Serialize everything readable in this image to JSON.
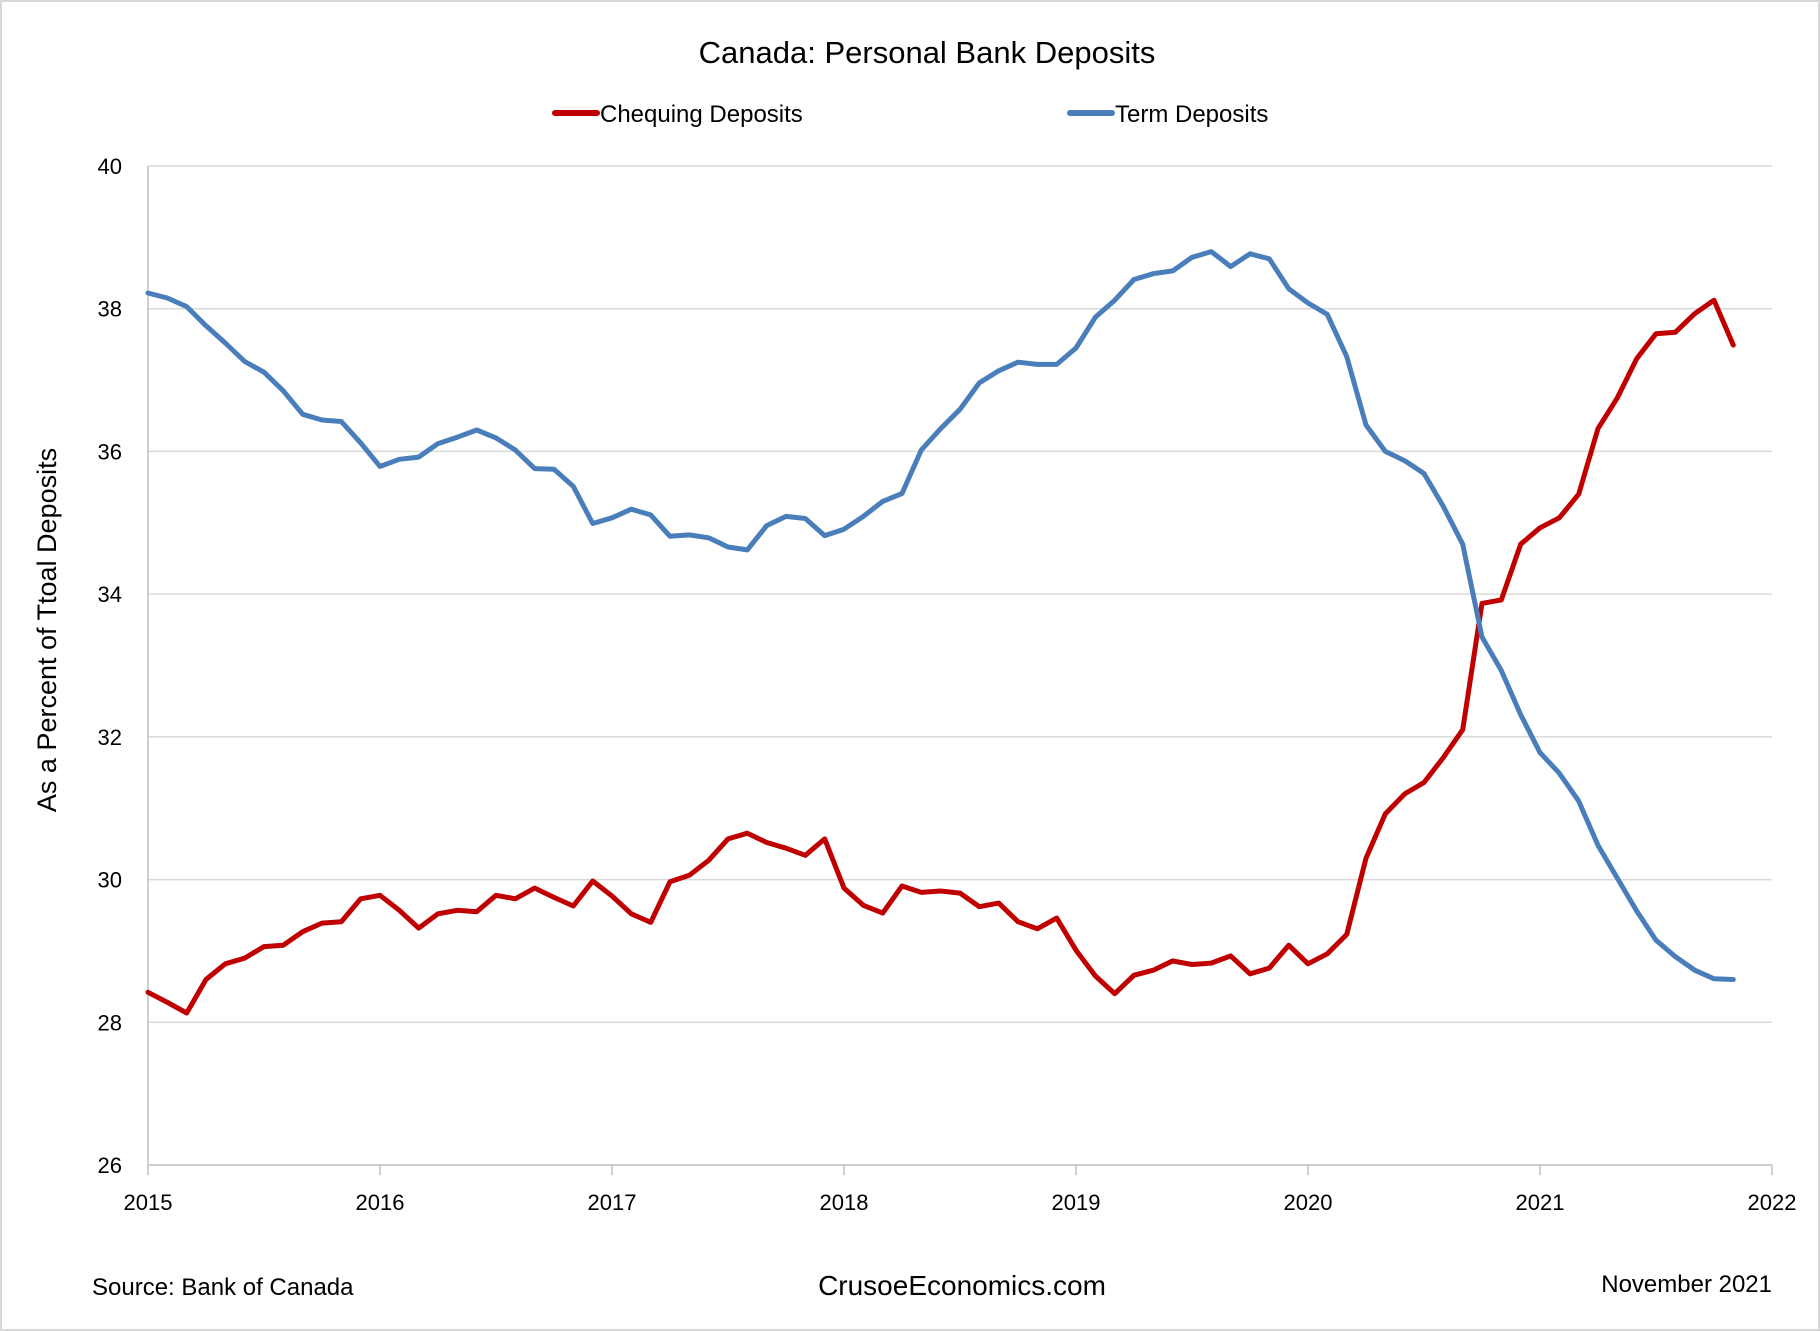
{
  "colors": {
    "chequing": "#c00000",
    "term": "#4a7ebb",
    "grid": "#d9d9d9",
    "axis": "#bfbfbf"
  },
  "footer": {
    "source": "Source:  Bank of Canada",
    "site": "CrusoeEconomics.com",
    "date": "November 2021"
  },
  "chart_data": {
    "type": "line",
    "title": "Canada: Personal Bank Deposits",
    "ylabel": "As a Percent of Ttoal Deposits",
    "xlabel": "",
    "ylim": [
      26,
      40
    ],
    "xlim": [
      2015,
      2022
    ],
    "y_ticks": [
      "26",
      "28",
      "30",
      "32",
      "34",
      "36",
      "38",
      "40"
    ],
    "x_ticks": [
      "2015",
      "2016",
      "2017",
      "2018",
      "2019",
      "2020",
      "2021",
      "2022"
    ],
    "grid": "horizontal",
    "legend": "top",
    "series": [
      {
        "name": "Chequing Deposits",
        "color": "#c00000",
        "x": [
          2015.0,
          2015.083,
          2015.167,
          2015.25,
          2015.333,
          2015.417,
          2015.5,
          2015.583,
          2015.667,
          2015.75,
          2015.833,
          2015.917,
          2016.0,
          2016.083,
          2016.167,
          2016.25,
          2016.333,
          2016.417,
          2016.5,
          2016.583,
          2016.667,
          2016.75,
          2016.833,
          2016.917,
          2017.0,
          2017.083,
          2017.167,
          2017.25,
          2017.333,
          2017.417,
          2017.5,
          2017.583,
          2017.667,
          2017.75,
          2017.833,
          2017.917,
          2018.0,
          2018.083,
          2018.167,
          2018.25,
          2018.333,
          2018.417,
          2018.5,
          2018.583,
          2018.667,
          2018.75,
          2018.833,
          2018.917,
          2019.0,
          2019.083,
          2019.167,
          2019.25,
          2019.333,
          2019.417,
          2019.5,
          2019.583,
          2019.667,
          2019.75,
          2019.833,
          2019.917,
          2020.0,
          2020.083,
          2020.167,
          2020.25,
          2020.333,
          2020.417,
          2020.5,
          2020.583,
          2020.667,
          2020.75,
          2020.833,
          2020.917,
          2021.0,
          2021.083,
          2021.167,
          2021.25,
          2021.333,
          2021.417,
          2021.5,
          2021.583,
          2021.667,
          2021.75,
          2021.833
        ],
        "values": [
          28.42,
          28.28,
          28.13,
          28.6,
          28.82,
          28.9,
          29.06,
          29.08,
          29.27,
          29.39,
          29.41,
          29.73,
          29.78,
          29.57,
          29.32,
          29.52,
          29.57,
          29.55,
          29.78,
          29.73,
          29.88,
          29.75,
          29.63,
          29.98,
          29.77,
          29.52,
          29.4,
          29.97,
          30.06,
          30.27,
          30.57,
          30.65,
          30.52,
          30.44,
          30.34,
          30.57,
          29.88,
          29.64,
          29.53,
          29.91,
          29.82,
          29.84,
          29.81,
          29.62,
          29.67,
          29.41,
          29.31,
          29.46,
          29.01,
          28.65,
          28.4,
          28.66,
          28.73,
          28.86,
          28.81,
          28.83,
          28.93,
          28.68,
          28.76,
          29.08,
          28.82,
          28.96,
          29.23,
          30.3,
          30.92,
          31.2,
          31.36,
          31.71,
          32.1,
          33.87,
          33.92,
          34.7,
          34.93,
          35.07,
          35.4,
          36.32,
          36.75,
          37.3,
          37.65,
          37.67,
          37.93,
          38.12,
          37.49
        ]
      },
      {
        "name": "Term Deposits",
        "color": "#4a7ebb",
        "x": [
          2015.0,
          2015.083,
          2015.167,
          2015.25,
          2015.333,
          2015.417,
          2015.5,
          2015.583,
          2015.667,
          2015.75,
          2015.833,
          2015.917,
          2016.0,
          2016.083,
          2016.167,
          2016.25,
          2016.333,
          2016.417,
          2016.5,
          2016.583,
          2016.667,
          2016.75,
          2016.833,
          2016.917,
          2017.0,
          2017.083,
          2017.167,
          2017.25,
          2017.333,
          2017.417,
          2017.5,
          2017.583,
          2017.667,
          2017.75,
          2017.833,
          2017.917,
          2018.0,
          2018.083,
          2018.167,
          2018.25,
          2018.333,
          2018.417,
          2018.5,
          2018.583,
          2018.667,
          2018.75,
          2018.833,
          2018.917,
          2019.0,
          2019.083,
          2019.167,
          2019.25,
          2019.333,
          2019.417,
          2019.5,
          2019.583,
          2019.667,
          2019.75,
          2019.833,
          2019.917,
          2020.0,
          2020.083,
          2020.167,
          2020.25,
          2020.333,
          2020.417,
          2020.5,
          2020.583,
          2020.667,
          2020.75,
          2020.833,
          2020.917,
          2021.0,
          2021.083,
          2021.167,
          2021.25,
          2021.333,
          2021.417,
          2021.5,
          2021.583,
          2021.667,
          2021.75,
          2021.833
        ],
        "values": [
          38.22,
          38.15,
          38.03,
          37.76,
          37.52,
          37.26,
          37.11,
          36.85,
          36.52,
          36.44,
          36.42,
          36.12,
          35.79,
          35.89,
          35.92,
          36.11,
          36.2,
          36.3,
          36.19,
          36.02,
          35.76,
          35.75,
          35.51,
          34.99,
          35.07,
          35.19,
          35.11,
          34.81,
          34.83,
          34.79,
          34.66,
          34.62,
          34.96,
          35.09,
          35.06,
          34.82,
          34.91,
          35.09,
          35.3,
          35.41,
          36.02,
          36.32,
          36.59,
          36.96,
          37.13,
          37.25,
          37.22,
          37.22,
          37.45,
          37.88,
          38.12,
          38.41,
          38.49,
          38.53,
          38.72,
          38.8,
          38.59,
          38.77,
          38.7,
          38.28,
          38.08,
          37.92,
          37.33,
          36.37,
          36.0,
          35.87,
          35.69,
          35.23,
          34.7,
          33.4,
          32.93,
          32.31,
          31.78,
          31.49,
          31.1,
          30.48,
          30.02,
          29.56,
          29.15,
          28.92,
          28.73,
          28.61,
          28.6
        ]
      }
    ]
  }
}
